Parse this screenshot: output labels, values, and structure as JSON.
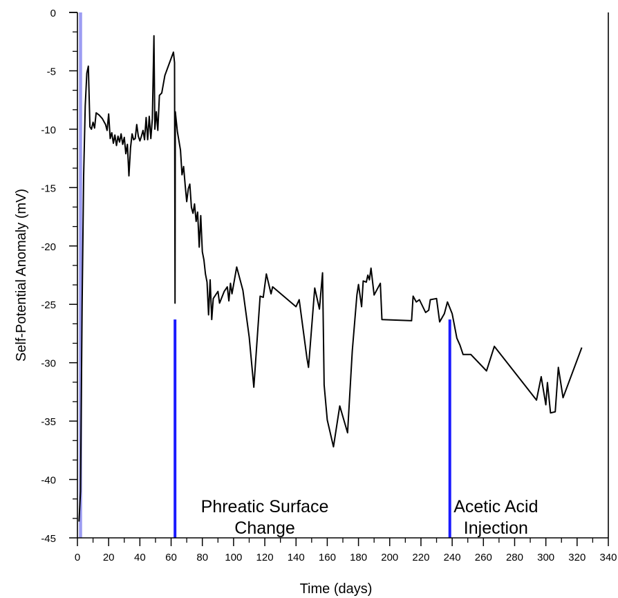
{
  "chart_data": {
    "type": "line",
    "xlabel": "Time (days)",
    "ylabel": "Self-Potential Anomaly (mV)",
    "xlim": [
      0,
      340
    ],
    "ylim": [
      -45,
      0
    ],
    "x_ticks": [
      0,
      20,
      40,
      60,
      80,
      100,
      120,
      140,
      160,
      180,
      200,
      220,
      240,
      260,
      280,
      300,
      320,
      340
    ],
    "y_ticks": [
      0,
      -5,
      -10,
      -15,
      -20,
      -25,
      -30,
      -35,
      -40,
      -45
    ],
    "grid": false,
    "colors": {
      "series": "#000000",
      "marker": "#1a1aff",
      "shade": "#9c9cf2"
    },
    "series": [
      {
        "points": [
          [
            1,
            -43.6
          ],
          [
            2,
            -41
          ],
          [
            3,
            -25
          ],
          [
            4,
            -14
          ],
          [
            5,
            -8
          ],
          [
            6,
            -5.2
          ],
          [
            7,
            -4.6
          ],
          [
            8,
            -9.8
          ],
          [
            9,
            -10
          ],
          [
            10,
            -9.4
          ],
          [
            11,
            -9.9
          ],
          [
            12,
            -8.6
          ],
          [
            14,
            -8.8
          ],
          [
            16,
            -9.1
          ],
          [
            18,
            -9.6
          ],
          [
            19,
            -10.1
          ],
          [
            20,
            -8.7
          ],
          [
            21,
            -10.8
          ],
          [
            22,
            -10.3
          ],
          [
            23,
            -11.2
          ],
          [
            24,
            -10.5
          ],
          [
            25,
            -11.4
          ],
          [
            26,
            -10.6
          ],
          [
            27,
            -11.1
          ],
          [
            28,
            -10.4
          ],
          [
            29,
            -11.3
          ],
          [
            30,
            -10.7
          ],
          [
            31,
            -12.1
          ],
          [
            32,
            -11.3
          ],
          [
            33,
            -14
          ],
          [
            34,
            -11.6
          ],
          [
            35,
            -10.4
          ],
          [
            36,
            -10.9
          ],
          [
            37,
            -10.8
          ],
          [
            38,
            -9.6
          ],
          [
            39,
            -10.6
          ],
          [
            40,
            -11
          ],
          [
            41,
            -10.6
          ],
          [
            42,
            -10.1
          ],
          [
            43,
            -10.9
          ],
          [
            44,
            -9
          ],
          [
            45,
            -10.9
          ],
          [
            46,
            -8.9
          ],
          [
            47,
            -10.8
          ],
          [
            48,
            -9.1
          ],
          [
            49,
            -2
          ],
          [
            49.6,
            -10
          ],
          [
            50.5,
            -8.5
          ],
          [
            51.5,
            -10.1
          ],
          [
            52.5,
            -7.1
          ],
          [
            54,
            -6.9
          ],
          [
            56,
            -5.4
          ],
          [
            59,
            -4.3
          ],
          [
            61.5,
            -3.4
          ],
          [
            62.2,
            -4.3
          ],
          [
            62.5,
            -24.9
          ],
          [
            62.7,
            -8.5
          ],
          [
            64,
            -10.2
          ],
          [
            66,
            -11.8
          ],
          [
            67,
            -13.9
          ],
          [
            68,
            -13.2
          ],
          [
            69,
            -14.8
          ],
          [
            70,
            -16.2
          ],
          [
            71,
            -15.1
          ],
          [
            72,
            -14.7
          ],
          [
            73,
            -16.7
          ],
          [
            74,
            -17.2
          ],
          [
            75,
            -16.4
          ],
          [
            76,
            -17.9
          ],
          [
            77,
            -17.1
          ],
          [
            78,
            -20.1
          ],
          [
            79,
            -17.4
          ],
          [
            80,
            -20.5
          ],
          [
            81,
            -21.2
          ],
          [
            82,
            -22.4
          ],
          [
            83,
            -23.1
          ],
          [
            84,
            -25.9
          ],
          [
            85,
            -22.9
          ],
          [
            86,
            -26.3
          ],
          [
            87,
            -24.5
          ],
          [
            90,
            -23.9
          ],
          [
            91,
            -24.9
          ],
          [
            94,
            -23.9
          ],
          [
            96,
            -23.5
          ],
          [
            97,
            -24.7
          ],
          [
            98,
            -23.2
          ],
          [
            99,
            -24.1
          ],
          [
            102,
            -21.8
          ],
          [
            106,
            -23.8
          ],
          [
            110,
            -27.8
          ],
          [
            113,
            -32.1
          ],
          [
            117,
            -24.3
          ],
          [
            119,
            -24.4
          ],
          [
            121,
            -22.4
          ],
          [
            124,
            -24.1
          ],
          [
            125,
            -23.5
          ],
          [
            140,
            -25.2
          ],
          [
            142,
            -24.6
          ],
          [
            147,
            -29.6
          ],
          [
            148,
            -30.4
          ],
          [
            152,
            -23.6
          ],
          [
            155,
            -25.4
          ],
          [
            157,
            -22.3
          ],
          [
            158,
            -31.9
          ],
          [
            160,
            -34.9
          ],
          [
            164,
            -37.2
          ],
          [
            168,
            -33.7
          ],
          [
            173,
            -36
          ],
          [
            176,
            -29
          ],
          [
            179,
            -24.2
          ],
          [
            180,
            -23.3
          ],
          [
            182,
            -25.2
          ],
          [
            183,
            -23
          ],
          [
            185,
            -23.1
          ],
          [
            186,
            -22.5
          ],
          [
            187,
            -22.9
          ],
          [
            188,
            -21.9
          ],
          [
            190,
            -24.2
          ],
          [
            194,
            -23.2
          ],
          [
            195,
            -26.3
          ],
          [
            214,
            -26.4
          ],
          [
            215,
            -24.3
          ],
          [
            217,
            -24.8
          ],
          [
            219,
            -24.6
          ],
          [
            223,
            -25.7
          ],
          [
            225,
            -25.5
          ],
          [
            226,
            -24.6
          ],
          [
            230,
            -24.5
          ],
          [
            232,
            -26.5
          ],
          [
            235,
            -25.8
          ],
          [
            237,
            -24.8
          ],
          [
            240,
            -25.8
          ],
          [
            243,
            -27.9
          ],
          [
            245,
            -28.5
          ],
          [
            247,
            -29.3
          ],
          [
            252,
            -29.3
          ],
          [
            262,
            -30.7
          ],
          [
            267,
            -28.6
          ],
          [
            294,
            -33.2
          ],
          [
            297,
            -31.2
          ],
          [
            300,
            -33.6
          ],
          [
            301,
            -31.7
          ],
          [
            303,
            -34.3
          ],
          [
            306,
            -34.2
          ],
          [
            308,
            -30.4
          ],
          [
            311,
            -33
          ],
          [
            323,
            -28.7
          ]
        ]
      }
    ],
    "event_lines": [
      {
        "x": 62.5,
        "y_from": -45,
        "y_to": -26.3
      },
      {
        "x": 238.5,
        "y_from": -45,
        "y_to": -26.3
      }
    ],
    "shaded_band": {
      "x_from": 1,
      "x_to": 3,
      "y_from": -45,
      "y_to": 0
    },
    "annotations": [
      {
        "lines": [
          "Phreatic Surface",
          "Change"
        ],
        "x": 120,
        "y": -42.8
      },
      {
        "lines": [
          "Acetic Acid",
          "Injection"
        ],
        "x": 268,
        "y": -42.8
      }
    ]
  }
}
